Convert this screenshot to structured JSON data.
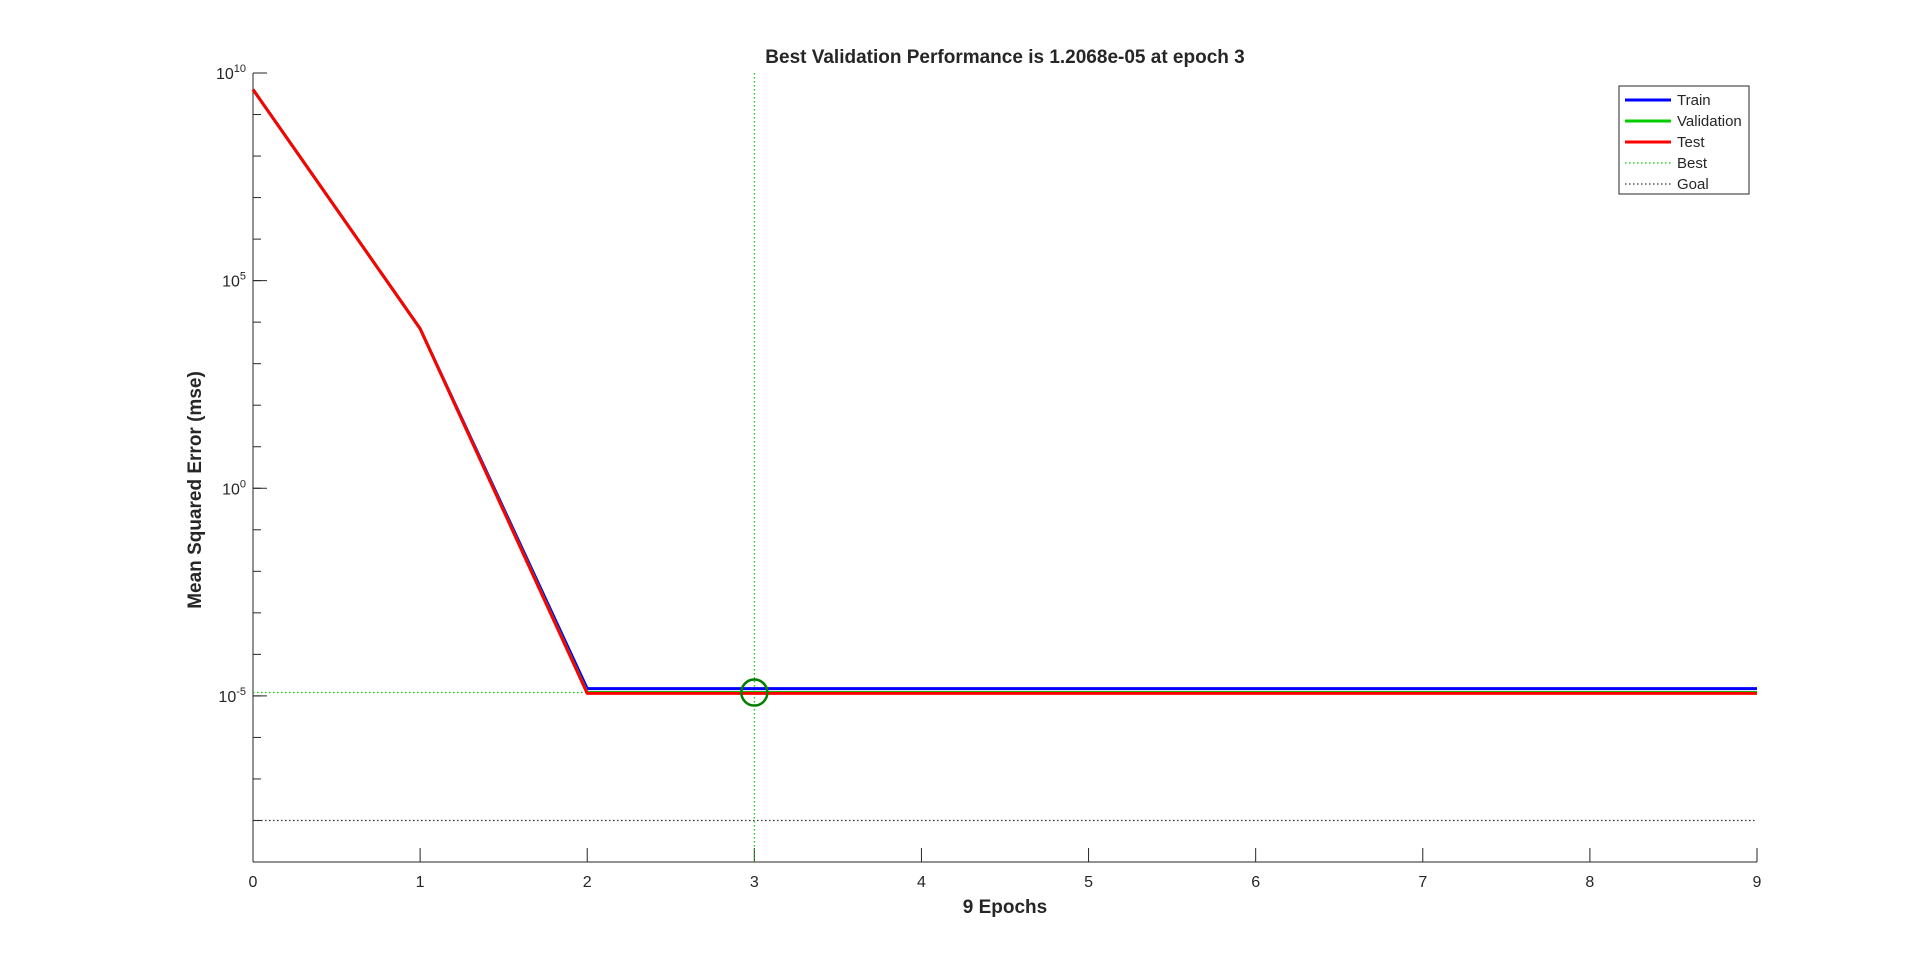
{
  "chart_data": {
    "type": "line",
    "title": "Best Validation Performance is 1.2068e-05 at epoch 3",
    "xlabel": "9 Epochs",
    "ylabel": "Mean Squared Error  (mse)",
    "xlim": [
      0,
      9
    ],
    "ylim_log10": [
      -9.0,
      10.0
    ],
    "yscale": "log",
    "x_ticks": [
      0,
      1,
      2,
      3,
      4,
      5,
      6,
      7,
      8,
      9
    ],
    "y_ticks": [
      {
        "exponent": 10,
        "base": "10",
        "sup": "10"
      },
      {
        "exponent": 5,
        "base": "10",
        "sup": "5"
      },
      {
        "exponent": 0,
        "base": "10",
        "sup": "0"
      },
      {
        "exponent": -5,
        "base": "10",
        "sup": "-5"
      }
    ],
    "series": [
      {
        "name": "Train",
        "color": "#0000ff",
        "x": [
          0,
          1,
          2,
          3,
          4,
          5,
          6,
          7,
          8,
          9
        ],
        "y": [
          4000000000.0,
          7000.0,
          1.5e-05,
          1.5e-05,
          1.5e-05,
          1.5e-05,
          1.5e-05,
          1.5e-05,
          1.5e-05,
          1.5e-05
        ]
      },
      {
        "name": "Validation",
        "color": "#00cc00",
        "x": [
          0,
          1,
          2,
          3,
          4,
          5,
          6,
          7,
          8,
          9
        ],
        "y": [
          4000000000.0,
          7000.0,
          1.2068e-05,
          1.2068e-05,
          1.2068e-05,
          1.2068e-05,
          1.2068e-05,
          1.2068e-05,
          1.2068e-05,
          1.2068e-05
        ]
      },
      {
        "name": "Test",
        "color": "#ff0000",
        "x": [
          0,
          1,
          2,
          3,
          4,
          5,
          6,
          7,
          8,
          9
        ],
        "y": [
          4000000000.0,
          7000.0,
          1.15e-05,
          1.15e-05,
          1.15e-05,
          1.15e-05,
          1.15e-05,
          1.15e-05,
          1.15e-05,
          1.15e-05
        ]
      }
    ],
    "best": {
      "name": "Best",
      "epoch": 3,
      "value": 1.2068e-05,
      "color": "#00cc00",
      "marker_color": "#007f00"
    },
    "goal": {
      "name": "Goal",
      "value": 1e-08,
      "color": "#333333"
    },
    "legend": {
      "placement": "top-right"
    },
    "grid": false
  }
}
